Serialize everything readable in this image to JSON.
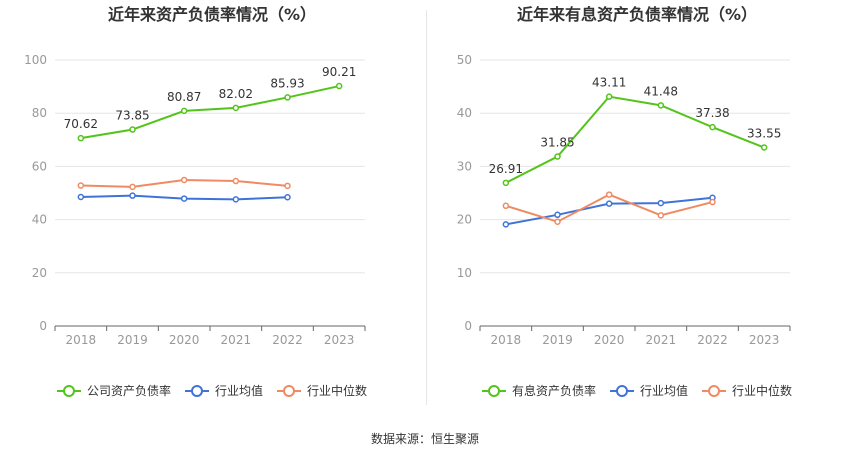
{
  "source_text": "数据来源：恒生聚源",
  "colors": {
    "company": "#52c41a",
    "industry_avg": "#3f73d9",
    "industry_median": "#f08a62",
    "grid": "#e6e6e6",
    "axis": "#999999",
    "label": "#333333"
  },
  "chart_data": [
    {
      "type": "line",
      "title": "近年来资产负债率情况（%）",
      "categories": [
        "2018",
        "2019",
        "2020",
        "2021",
        "2022",
        "2023"
      ],
      "ylim": [
        0,
        100
      ],
      "yticks": [
        0,
        20,
        40,
        60,
        80,
        100
      ],
      "grid": true,
      "legend_position": "bottom",
      "series": [
        {
          "name": "公司资产负债率",
          "color": "#52c41a",
          "labels": true,
          "values": [
            70.62,
            73.85,
            80.87,
            82.02,
            85.93,
            90.21
          ]
        },
        {
          "name": "行业均值",
          "color": "#3f73d9",
          "labels": false,
          "values": [
            48.5,
            49.0,
            47.9,
            47.6,
            48.4,
            null
          ]
        },
        {
          "name": "行业中位数",
          "color": "#f08a62",
          "labels": false,
          "values": [
            52.8,
            52.3,
            54.9,
            54.5,
            52.7,
            null
          ]
        }
      ]
    },
    {
      "type": "line",
      "title": "近年来有息资产负债率情况（%）",
      "categories": [
        "2018",
        "2019",
        "2020",
        "2021",
        "2022",
        "2023"
      ],
      "ylim": [
        0,
        50
      ],
      "yticks": [
        0,
        10,
        20,
        30,
        40,
        50
      ],
      "grid": true,
      "legend_position": "bottom",
      "series": [
        {
          "name": "有息资产负债率",
          "color": "#52c41a",
          "labels": true,
          "values": [
            26.91,
            31.85,
            43.11,
            41.48,
            37.38,
            33.55
          ]
        },
        {
          "name": "行业均值",
          "color": "#3f73d9",
          "labels": false,
          "values": [
            19.1,
            20.9,
            23.0,
            23.1,
            24.1,
            null
          ]
        },
        {
          "name": "行业中位数",
          "color": "#f08a62",
          "labels": false,
          "values": [
            22.6,
            19.6,
            24.7,
            20.8,
            23.3,
            null
          ]
        }
      ]
    }
  ]
}
